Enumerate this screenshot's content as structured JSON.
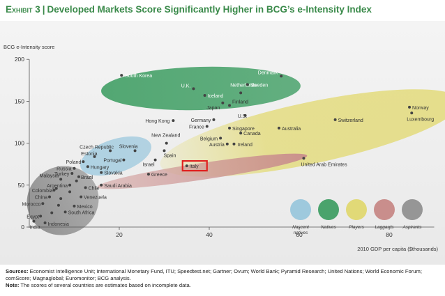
{
  "header": {
    "exhibit": "Exhibit 3",
    "separator": "|",
    "title": "Developed Markets Score Significantly Higher in BCG’s e-Intensity Index"
  },
  "chart_data": {
    "type": "scatter",
    "ylabel": "BCG e-Intensity score",
    "xlabel": "2010 GDP per capita ($thousands)",
    "xlim": [
      0,
      90
    ],
    "ylim": [
      0,
      200
    ],
    "xticks": [
      20,
      40,
      60,
      80
    ],
    "yticks": [
      0,
      50,
      100,
      150,
      200
    ],
    "grid": false,
    "legend_position": "right",
    "legend": [
      {
        "key": "nascent",
        "label": "Nascent natives",
        "color": "#9ec9dd"
      },
      {
        "key": "natives",
        "label": "Natives",
        "color": "#4aa36c"
      },
      {
        "key": "players",
        "label": "Players",
        "color": "#e1d977"
      },
      {
        "key": "laggards",
        "label": "Laggards",
        "color": "#c98e8c"
      },
      {
        "key": "aspirants",
        "label": "Aspirants",
        "color": "#969696"
      }
    ],
    "highlight": "Italy",
    "points": [
      {
        "name": "South Korea",
        "x": 20.5,
        "y": 181,
        "group": "natives",
        "anchor": "start",
        "dx": 5,
        "dy": 3,
        "lc": "#ffffff"
      },
      {
        "name": "Denmark",
        "x": 56,
        "y": 180,
        "group": "natives",
        "anchor": "end",
        "dx": -5,
        "dy": -3,
        "lc": "#ffffff"
      },
      {
        "name": "U.K.",
        "x": 36.5,
        "y": 165,
        "group": "natives",
        "anchor": "end",
        "dx": -4,
        "dy": -2,
        "lc": "#ffffff"
      },
      {
        "name": "Netherlands",
        "x": 47,
        "y": 160,
        "group": "natives",
        "anchor": "middle",
        "dx": 4,
        "dy": -9,
        "lc": "#ffffff"
      },
      {
        "name": "Sweden",
        "x": 48.5,
        "y": 170,
        "group": "natives",
        "anchor": "start",
        "dx": 4,
        "dy": 3,
        "lc": "#ffffff"
      },
      {
        "name": "Iceland",
        "x": 39,
        "y": 157,
        "group": "natives",
        "anchor": "start",
        "dx": 4,
        "dy": 3,
        "lc": "#ffffff"
      },
      {
        "name": "Japan",
        "x": 43,
        "y": 148,
        "group": "players",
        "anchor": "end",
        "dx": -4,
        "dy": 9,
        "lc": "#333333"
      },
      {
        "name": "Finland",
        "x": 44.5,
        "y": 145,
        "group": "players",
        "anchor": "start",
        "dx": 4,
        "dy": -3,
        "lc": "#333333"
      },
      {
        "name": "Hong Kong",
        "x": 32,
        "y": 127,
        "group": "players",
        "anchor": "end",
        "dx": -5,
        "dy": 3,
        "lc": "#333333"
      },
      {
        "name": "U.S.",
        "x": 48,
        "y": 133,
        "group": "players",
        "anchor": "middle",
        "dx": -4,
        "dy": 3,
        "lc": "#333333"
      },
      {
        "name": "Germany",
        "x": 41,
        "y": 128,
        "group": "players",
        "anchor": "end",
        "dx": -4,
        "dy": 3,
        "lc": "#333333"
      },
      {
        "name": "France",
        "x": 39.5,
        "y": 120,
        "group": "players",
        "anchor": "end",
        "dx": -4,
        "dy": 3,
        "lc": "#333333"
      },
      {
        "name": "Singapore",
        "x": 44.5,
        "y": 118,
        "group": "players",
        "anchor": "start",
        "dx": 4,
        "dy": 3,
        "lc": "#333333"
      },
      {
        "name": "Canada",
        "x": 47,
        "y": 112,
        "group": "players",
        "anchor": "start",
        "dx": 4,
        "dy": 3,
        "lc": "#333333"
      },
      {
        "name": "Australia",
        "x": 55.5,
        "y": 118,
        "group": "players",
        "anchor": "start",
        "dx": 4,
        "dy": 3,
        "lc": "#333333"
      },
      {
        "name": "Switzerland",
        "x": 68,
        "y": 128,
        "group": "players",
        "anchor": "start",
        "dx": 4,
        "dy": 3,
        "lc": "#333333"
      },
      {
        "name": "Norway",
        "x": 84.5,
        "y": 143,
        "group": "players",
        "anchor": "start",
        "dx": 4,
        "dy": 3,
        "lc": "#333333"
      },
      {
        "name": "Luxembourg",
        "x": 85,
        "y": 136,
        "group": "players",
        "anchor": "start",
        "dx": -7,
        "dy": 11,
        "lc": "#333333"
      },
      {
        "name": "Belgium",
        "x": 42.5,
        "y": 106,
        "group": "players",
        "anchor": "end",
        "dx": -4,
        "dy": 3,
        "lc": "#333333"
      },
      {
        "name": "Austria",
        "x": 44,
        "y": 99,
        "group": "players",
        "anchor": "end",
        "dx": -4,
        "dy": 3,
        "lc": "#333333"
      },
      {
        "name": "Ireland",
        "x": 45.5,
        "y": 99,
        "group": "players",
        "anchor": "start",
        "dx": 5,
        "dy": 3,
        "lc": "#333333"
      },
      {
        "name": "New Zealand",
        "x": 30.5,
        "y": 100,
        "group": "players",
        "anchor": "middle",
        "dx": -1,
        "dy": -9,
        "lc": "#333333"
      },
      {
        "name": "Spain",
        "x": 30,
        "y": 91,
        "group": "players",
        "anchor": "start",
        "dx": -1,
        "dy": 9,
        "lc": "#333333"
      },
      {
        "name": "Israel",
        "x": 28,
        "y": 80,
        "group": "players",
        "anchor": "end",
        "dx": -1,
        "dy": 9,
        "lc": "#333333"
      },
      {
        "name": "Czech Republic",
        "x": 18,
        "y": 91,
        "group": "nascent",
        "anchor": "end",
        "dx": 5,
        "dy": -3,
        "lc": "#333333"
      },
      {
        "name": "Slovenia",
        "x": 23.5,
        "y": 91,
        "group": "nascent",
        "anchor": "end",
        "dx": 0,
        "dy": -4,
        "lc": "#333333"
      },
      {
        "name": "Estonia",
        "x": 14.5,
        "y": 84,
        "group": "nascent",
        "anchor": "end",
        "dx": 0,
        "dy": -2,
        "lc": "#333333"
      },
      {
        "name": "Portugal",
        "x": 21,
        "y": 80,
        "group": "nascent",
        "anchor": "end",
        "dx": -3,
        "dy": 3,
        "lc": "#333333"
      },
      {
        "name": "Poland",
        "x": 12,
        "y": 78,
        "group": "nascent",
        "anchor": "end",
        "dx": -3,
        "dy": 3,
        "lc": "#333333"
      },
      {
        "name": "Hungary",
        "x": 13,
        "y": 72,
        "group": "nascent",
        "anchor": "start",
        "dx": 4,
        "dy": 3,
        "lc": "#333333"
      },
      {
        "name": "Russia",
        "x": 10,
        "y": 70,
        "group": "aspirants",
        "anchor": "end",
        "dx": -4,
        "dy": 3,
        "lc": "#333333"
      },
      {
        "name": "Slovakia",
        "x": 16,
        "y": 65,
        "group": "nascent",
        "anchor": "start",
        "dx": 4,
        "dy": 3,
        "lc": "#333333"
      },
      {
        "name": "Turkey",
        "x": 9.5,
        "y": 64,
        "group": "aspirants",
        "anchor": "end",
        "dx": -4,
        "dy": 3,
        "lc": "#333333"
      },
      {
        "name": "Brazil",
        "x": 11,
        "y": 60,
        "group": "aspirants",
        "anchor": "start",
        "dx": 3,
        "dy": 3,
        "lc": "#333333"
      },
      {
        "name": "Italy",
        "x": 35,
        "y": 73,
        "group": "laggards",
        "anchor": "start",
        "dx": 4,
        "dy": 3,
        "lc": "#333333"
      },
      {
        "name": "Greece",
        "x": 26.5,
        "y": 63,
        "group": "laggards",
        "anchor": "start",
        "dx": 4,
        "dy": 3,
        "lc": "#333333"
      },
      {
        "name": "United Arab Emirates",
        "x": 61,
        "y": 82,
        "group": "laggards",
        "anchor": "start",
        "dx": -4,
        "dy": 11,
        "lc": "#333333"
      },
      {
        "name": "Saudi Arabia",
        "x": 16,
        "y": 50,
        "group": "laggards",
        "anchor": "start",
        "dx": 4,
        "dy": 3,
        "lc": "#333333"
      },
      {
        "name": "Malaysia",
        "x": 7,
        "y": 57,
        "group": "aspirants",
        "anchor": "end",
        "dx": -3,
        "dy": -3,
        "lc": "#333333"
      },
      {
        "name": "Argentina",
        "x": 9,
        "y": 50,
        "group": "aspirants",
        "anchor": "end",
        "dx": -3,
        "dy": 3,
        "lc": "#333333"
      },
      {
        "name": "Chile",
        "x": 12.5,
        "y": 47,
        "group": "aspirants",
        "anchor": "start",
        "dx": 4,
        "dy": 3,
        "lc": "#333333"
      },
      {
        "name": "Colombia",
        "x": 5.5,
        "y": 44,
        "group": "aspirants",
        "anchor": "end",
        "dx": -2,
        "dy": 3,
        "lc": "#333333"
      },
      {
        "name": "China",
        "x": 4.5,
        "y": 36,
        "group": "aspirants",
        "anchor": "end",
        "dx": -3,
        "dy": 3,
        "lc": "#333333"
      },
      {
        "name": "Venezuela",
        "x": 11.5,
        "y": 36,
        "group": "aspirants",
        "anchor": "start",
        "dx": 4,
        "dy": 3,
        "lc": "#333333"
      },
      {
        "name": "Morocco",
        "x": 3,
        "y": 28,
        "group": "aspirants",
        "anchor": "end",
        "dx": -3,
        "dy": 3,
        "lc": "#333333"
      },
      {
        "name": "Mexico",
        "x": 10,
        "y": 25,
        "group": "aspirants",
        "anchor": "start",
        "dx": 4,
        "dy": 3,
        "lc": "#333333"
      },
      {
        "name": "South Africa",
        "x": 8,
        "y": 18,
        "group": "aspirants",
        "anchor": "start",
        "dx": 4,
        "dy": 3,
        "lc": "#333333"
      },
      {
        "name": "Egypt",
        "x": 2.5,
        "y": 13,
        "group": "aspirants",
        "anchor": "end",
        "dx": -2,
        "dy": 3,
        "lc": "#333333"
      },
      {
        "name": "India",
        "x": 1,
        "y": 7,
        "group": "aspirants",
        "anchor": "start",
        "dx": -6,
        "dy": 11,
        "lc": "#333333"
      },
      {
        "name": "Indonesia",
        "x": 3.5,
        "y": 5,
        "group": "aspirants",
        "anchor": "start",
        "dx": 4,
        "dy": 4,
        "lc": "#333333"
      },
      {
        "name": "",
        "x": 6,
        "y": 46,
        "group": "aspirants"
      },
      {
        "name": "",
        "x": 7,
        "y": 34,
        "group": "aspirants"
      },
      {
        "name": "",
        "x": 6.5,
        "y": 26,
        "group": "aspirants"
      },
      {
        "name": "",
        "x": 5,
        "y": 17,
        "group": "aspirants"
      },
      {
        "name": "",
        "x": 9,
        "y": 42,
        "group": "aspirants"
      },
      {
        "name": "",
        "x": 10.5,
        "y": 55,
        "group": "aspirants"
      }
    ]
  },
  "sources": {
    "sources_label": "Sources:",
    "sources_text": "Economist Intelligence Unit; International Monetary Fund, ITU; Speedtest.net; Gartner; Ovum; World Bank; Pyramid Research; United Nations; World Economic Forum; comScore; Magnaglobal; Euromonitor; BCG analysis.",
    "note_label": "Note:",
    "note_text": "The scores of several countries are estimates based on incomplete data."
  }
}
